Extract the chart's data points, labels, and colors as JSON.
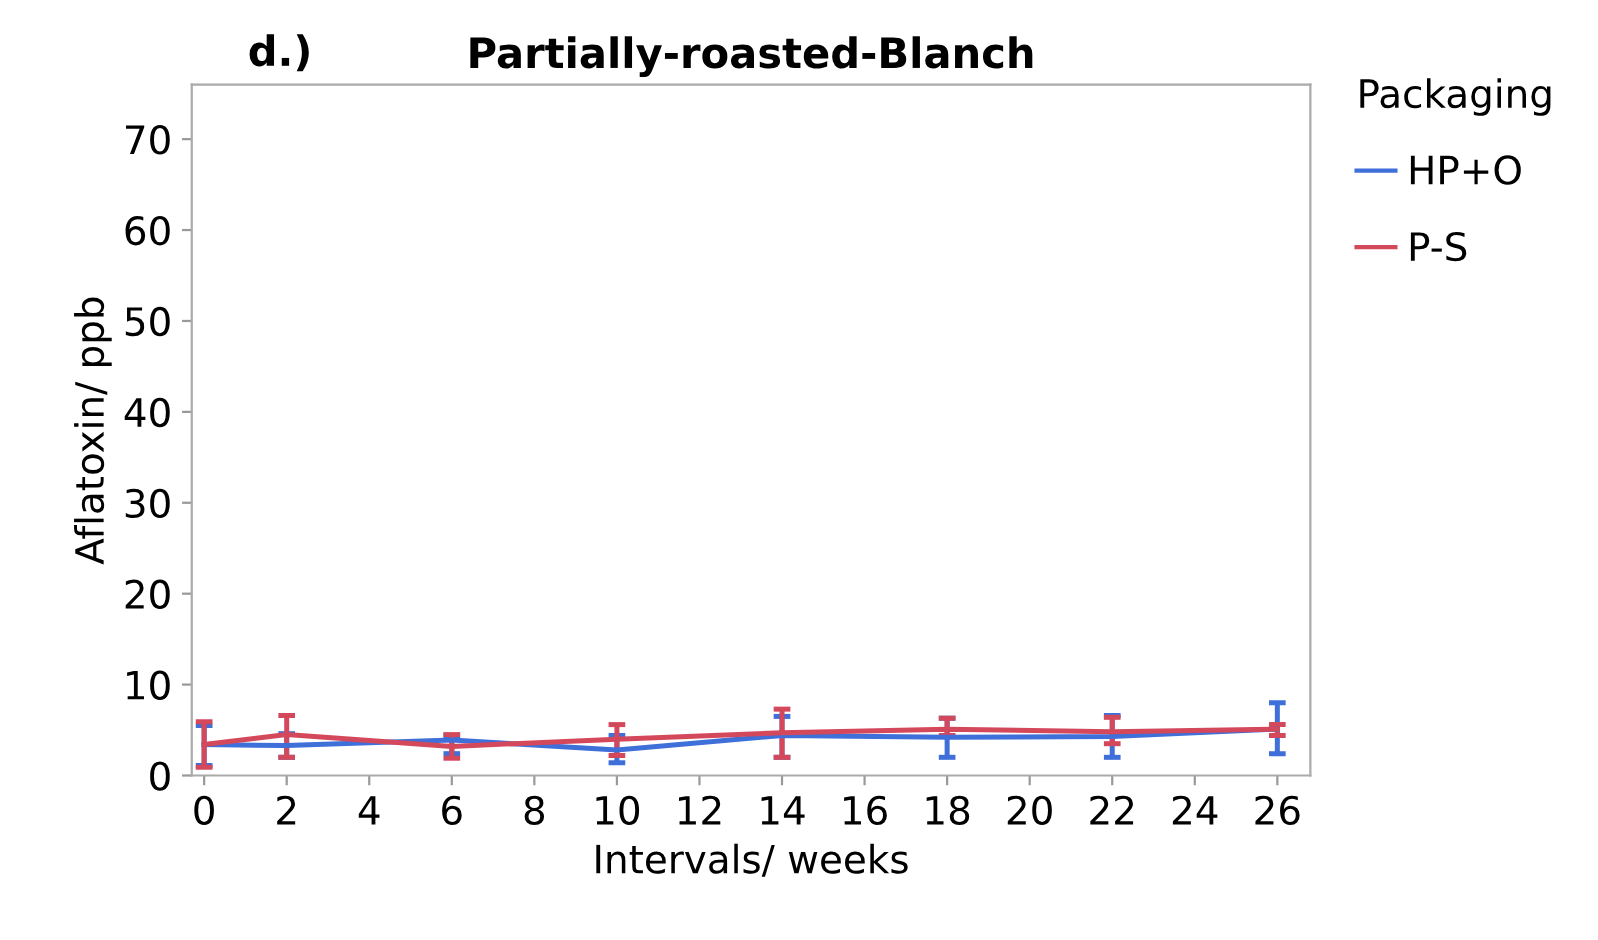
{
  "chart_data": {
    "type": "line",
    "title": "Partially-roasted-Blanch",
    "annotations": [
      "d.)"
    ],
    "xlabel": "Intervals/ weeks",
    "ylabel": "Aflatoxin/ ppb",
    "legend_title": "Packaging",
    "legend": "right",
    "xlim": [
      -0.3,
      26.8
    ],
    "xticks": [
      0,
      2,
      4,
      6,
      8,
      10,
      12,
      14,
      16,
      18,
      20,
      22,
      24,
      26
    ],
    "ylim": [
      0,
      76
    ],
    "yticks": [
      0,
      10,
      20,
      30,
      40,
      50,
      60,
      70
    ],
    "grid": false,
    "marker": "none",
    "line_style": "solid",
    "series": [
      {
        "name": "HP+O",
        "color": "#3f6fd8",
        "x": [
          0,
          2,
          6,
          10,
          14,
          18,
          22,
          26
        ],
        "values": [
          3.4,
          3.3,
          3.9,
          2.8,
          4.4,
          4.2,
          4.3,
          5.1
        ],
        "errors": [
          [
            1.1,
            5.5
          ],
          [
            2.0,
            4.6
          ],
          [
            2.4,
            4.4
          ],
          [
            1.4,
            4.4
          ],
          [
            2.0,
            6.5
          ],
          [
            2.0,
            6.3
          ],
          [
            2.0,
            6.6
          ],
          [
            2.4,
            8.0
          ]
        ]
      },
      {
        "name": "P-S",
        "color": "#d4485c",
        "x": [
          0,
          2,
          6,
          10,
          14,
          18,
          22,
          26
        ],
        "values": [
          3.4,
          4.5,
          3.2,
          4.0,
          4.7,
          5.1,
          4.8,
          5.1
        ],
        "errors": [
          [
            0.9,
            5.9
          ],
          [
            2.0,
            6.6
          ],
          [
            1.9,
            4.5
          ],
          [
            2.2,
            5.6
          ],
          [
            2.0,
            7.3
          ],
          [
            4.4,
            6.3
          ],
          [
            3.5,
            6.4
          ],
          [
            4.4,
            5.6
          ]
        ]
      }
    ]
  }
}
